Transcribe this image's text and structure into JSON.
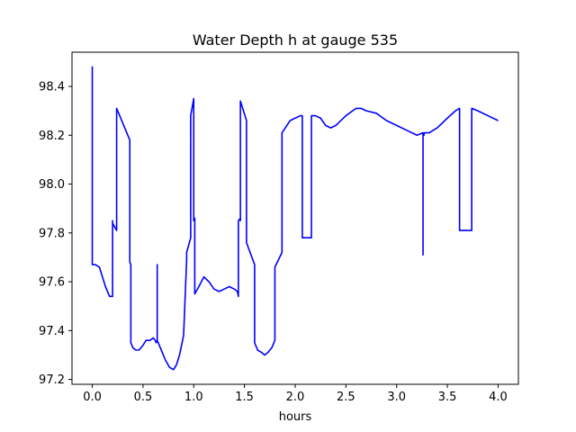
{
  "chart_data": {
    "type": "line",
    "title": "Water Depth h at gauge 535",
    "xlabel": "hours",
    "ylabel": "",
    "xlim": [
      -0.2,
      4.2
    ],
    "ylim": [
      97.18,
      98.54
    ],
    "xticks": [
      0.0,
      0.5,
      1.0,
      1.5,
      2.0,
      2.5,
      3.0,
      3.5,
      4.0
    ],
    "xtick_labels": [
      "0.0",
      "0.5",
      "1.0",
      "1.5",
      "2.0",
      "2.5",
      "3.0",
      "3.5",
      "4.0"
    ],
    "yticks": [
      97.2,
      97.4,
      97.6,
      97.8,
      98.0,
      98.2,
      98.4
    ],
    "ytick_labels": [
      "97.2",
      "97.4",
      "97.6",
      "97.8",
      "98.0",
      "98.2",
      "98.4"
    ],
    "grid": false,
    "series": [
      {
        "color": "#0000ff",
        "x": [
          0.0,
          0.0,
          0.0,
          0.0,
          0.03,
          0.07,
          0.1,
          0.13,
          0.17,
          0.2,
          0.2,
          0.2,
          0.24,
          0.24,
          0.37,
          0.37,
          0.38,
          0.38,
          0.4,
          0.43,
          0.46,
          0.5,
          0.53,
          0.57,
          0.6,
          0.62,
          0.63,
          0.64,
          0.64,
          0.64,
          0.65,
          0.66,
          0.69,
          0.72,
          0.76,
          0.8,
          0.83,
          0.86,
          0.9,
          0.93,
          0.93,
          0.97,
          0.97,
          1.0,
          1.0,
          1.01,
          1.01,
          1.01,
          1.05,
          1.1,
          1.15,
          1.2,
          1.25,
          1.3,
          1.35,
          1.4,
          1.43,
          1.44,
          1.44,
          1.46,
          1.46,
          1.46,
          1.52,
          1.52,
          1.6,
          1.6,
          1.63,
          1.67,
          1.7,
          1.73,
          1.77,
          1.8,
          1.8,
          1.87,
          1.87,
          1.95,
          2.05,
          2.07,
          2.07,
          2.1,
          2.13,
          2.16,
          2.16,
          2.2,
          2.25,
          2.3,
          2.35,
          2.4,
          2.5,
          2.6,
          2.65,
          2.7,
          2.8,
          2.9,
          3.0,
          3.1,
          3.2,
          3.26,
          3.26,
          3.26,
          3.27,
          3.27,
          3.32,
          3.4,
          3.5,
          3.58,
          3.62,
          3.62,
          3.63,
          3.74,
          3.74,
          3.8,
          3.9,
          4.0
        ],
        "y": [
          97.99,
          98.48,
          97.99,
          97.67,
          97.67,
          97.66,
          97.62,
          97.58,
          97.54,
          97.54,
          97.85,
          97.84,
          97.81,
          98.31,
          98.18,
          97.68,
          97.67,
          97.35,
          97.33,
          97.32,
          97.32,
          97.34,
          97.36,
          97.36,
          97.37,
          97.36,
          97.35,
          97.36,
          97.67,
          97.36,
          97.35,
          97.34,
          97.31,
          97.28,
          97.25,
          97.24,
          97.26,
          97.3,
          97.38,
          97.69,
          97.72,
          97.78,
          98.28,
          98.35,
          97.85,
          97.86,
          97.58,
          97.55,
          97.58,
          97.62,
          97.6,
          97.57,
          97.56,
          97.57,
          97.58,
          97.57,
          97.56,
          97.54,
          97.85,
          97.86,
          97.85,
          98.34,
          98.26,
          97.76,
          97.67,
          97.35,
          97.32,
          97.31,
          97.3,
          97.31,
          97.33,
          97.36,
          97.66,
          97.72,
          98.21,
          98.26,
          98.28,
          98.28,
          97.78,
          97.78,
          97.78,
          97.78,
          98.28,
          98.28,
          98.27,
          98.24,
          98.23,
          98.24,
          98.28,
          98.31,
          98.31,
          98.3,
          98.29,
          98.26,
          98.24,
          98.22,
          98.2,
          98.21,
          97.71,
          98.21,
          98.2,
          98.21,
          98.21,
          98.23,
          98.27,
          98.3,
          98.31,
          97.81,
          97.81,
          97.81,
          98.31,
          98.3,
          98.28,
          98.26
        ]
      }
    ]
  }
}
